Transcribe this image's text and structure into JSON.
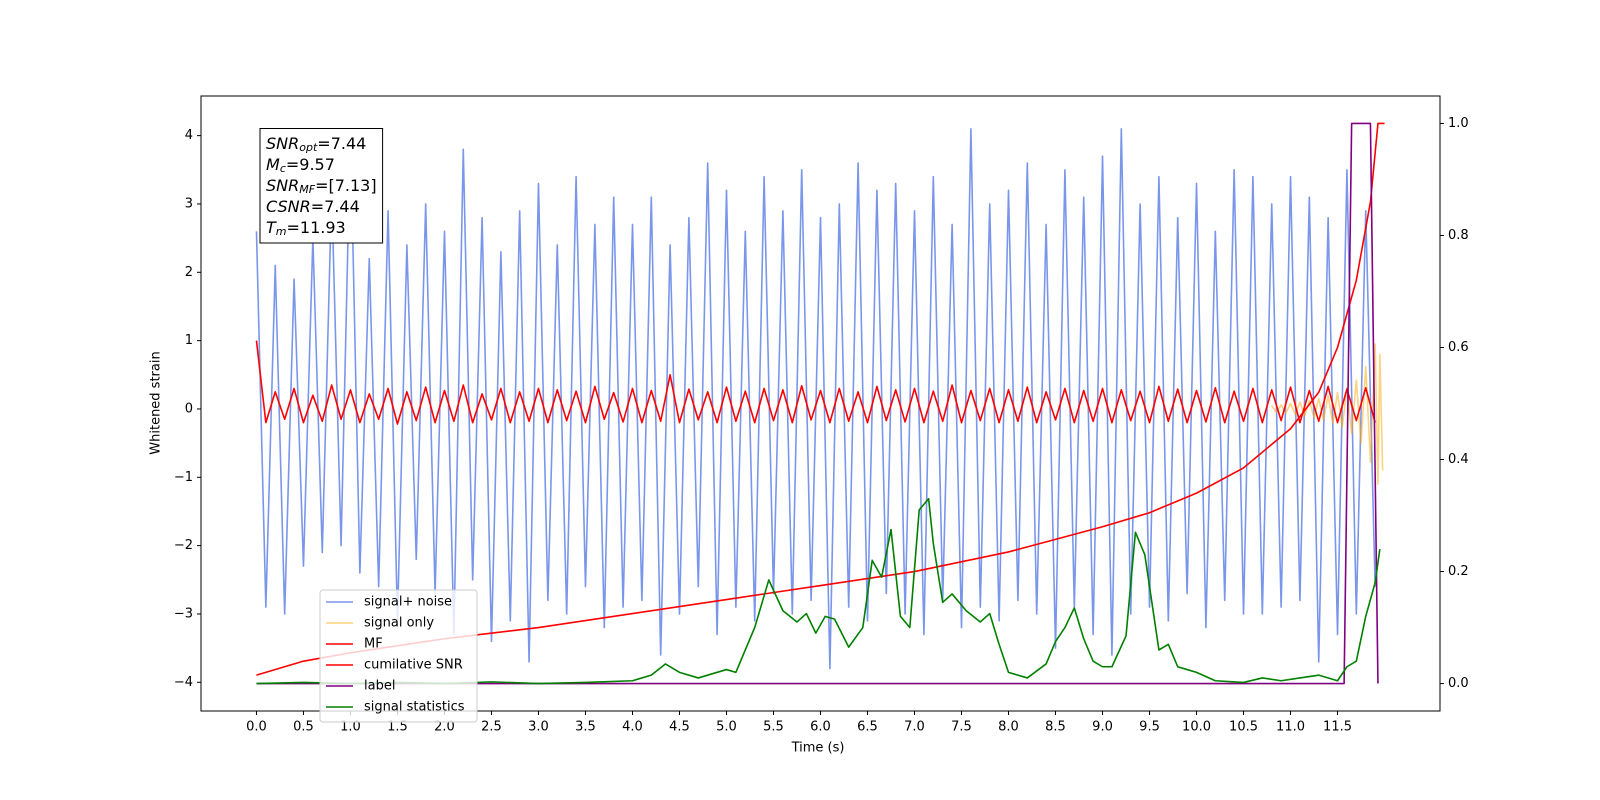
{
  "chart_data": {
    "type": "line",
    "xlabel": "Time (s)",
    "ylabel": "Whitened strain",
    "xlim": [
      -0.59,
      12.59
    ],
    "ylim": [
      -4.42,
      4.58
    ],
    "y2lim": [
      -0.049,
      1.049
    ],
    "xticks": [
      {
        "value": 0,
        "label": "0.0"
      },
      {
        "value": 0.5,
        "label": "0.5"
      },
      {
        "value": 1,
        "label": "1.0"
      },
      {
        "value": 1.5,
        "label": "1.5"
      },
      {
        "value": 2,
        "label": "2.0"
      },
      {
        "value": 2.5,
        "label": "2.5"
      },
      {
        "value": 3,
        "label": "3.0"
      },
      {
        "value": 3.5,
        "label": "3.5"
      },
      {
        "value": 4,
        "label": "4.0"
      },
      {
        "value": 4.5,
        "label": "4.5"
      },
      {
        "value": 5,
        "label": "5.0"
      },
      {
        "value": 5.5,
        "label": "5.5"
      },
      {
        "value": 6,
        "label": "6.0"
      },
      {
        "value": 6.5,
        "label": "6.5"
      },
      {
        "value": 7,
        "label": "7.0"
      },
      {
        "value": 7.5,
        "label": "7.5"
      },
      {
        "value": 8,
        "label": "8.0"
      },
      {
        "value": 8.5,
        "label": "8.5"
      },
      {
        "value": 9,
        "label": "9.0"
      },
      {
        "value": 9.5,
        "label": "9.5"
      },
      {
        "value": 10,
        "label": "10.0"
      },
      {
        "value": 10.5,
        "label": "10.5"
      },
      {
        "value": 11,
        "label": "11.0"
      },
      {
        "value": 11.5,
        "label": "11.5"
      }
    ],
    "yticks": [
      {
        "value": -4,
        "label": "−4"
      },
      {
        "value": -3,
        "label": "−3"
      },
      {
        "value": -2,
        "label": "−2"
      },
      {
        "value": -1,
        "label": "−1"
      },
      0,
      1,
      2,
      3,
      4
    ],
    "y2ticks": [
      {
        "value": 0,
        "label": "0.0"
      },
      {
        "value": 0.2,
        "label": "0.2"
      },
      {
        "value": 0.4,
        "label": "0.4"
      },
      {
        "value": 0.6,
        "label": "0.6"
      },
      {
        "value": 0.8,
        "label": "0.8"
      },
      {
        "value": 1,
        "label": "1.0"
      }
    ],
    "legend": "lower left",
    "annotation": [
      {
        "main": "SNR",
        "sub": "opt",
        "rest": "=7.44"
      },
      {
        "main": "M",
        "sub": "c",
        "rest": "=9.57"
      },
      {
        "main": "SNR",
        "sub": "MF",
        "rest": "=[7.13]"
      },
      {
        "main": "CSNR",
        "rest": "=7.44"
      },
      {
        "main": "T",
        "sub": "m",
        "rest": "=11.93"
      }
    ],
    "x": [
      0,
      0.1,
      0.2,
      0.3,
      0.4,
      0.5,
      0.6,
      0.7,
      0.8,
      0.9,
      1,
      1.1,
      1.2,
      1.3,
      1.4,
      1.5,
      1.6,
      1.7,
      1.8,
      1.9,
      2,
      2.1,
      2.2,
      2.3,
      2.4,
      2.5,
      2.6,
      2.7,
      2.8,
      2.9,
      3,
      3.1,
      3.2,
      3.3,
      3.4,
      3.5,
      3.6,
      3.7,
      3.8,
      3.9,
      4,
      4.1,
      4.2,
      4.3,
      4.4,
      4.5,
      4.6,
      4.7,
      4.8,
      4.9,
      5,
      5.1,
      5.2,
      5.3,
      5.4,
      5.5,
      5.6,
      5.7,
      5.8,
      5.9,
      6,
      6.1,
      6.2,
      6.3,
      6.4,
      6.5,
      6.6,
      6.7,
      6.8,
      6.9,
      7,
      7.1,
      7.2,
      7.3,
      7.4,
      7.5,
      7.6,
      7.7,
      7.8,
      7.9,
      8,
      8.1,
      8.2,
      8.3,
      8.4,
      8.5,
      8.6,
      8.7,
      8.8,
      8.9,
      9,
      9.1,
      9.2,
      9.3,
      9.4,
      9.5,
      9.6,
      9.7,
      9.8,
      9.9,
      10,
      10.1,
      10.2,
      10.3,
      10.4,
      10.5,
      10.6,
      10.7,
      10.8,
      10.9,
      11,
      11.1,
      11.2,
      11.3,
      11.4,
      11.5,
      11.6,
      11.7,
      11.8,
      11.9
    ],
    "series": [
      {
        "name": "signal+ noise",
        "color": "royalblue",
        "alpha": 0.7,
        "axis": "y",
        "values": [
          2.6,
          -2.9,
          2.1,
          -3.0,
          1.9,
          -2.3,
          2.5,
          -2.1,
          3.2,
          -2.0,
          4.1,
          -2.4,
          2.2,
          -2.6,
          2.9,
          -3.1,
          2.4,
          -2.2,
          3.0,
          -2.7,
          2.6,
          -3.3,
          3.8,
          -2.5,
          2.8,
          -3.4,
          2.3,
          -3.1,
          2.9,
          -3.7,
          3.3,
          -2.8,
          2.4,
          -3.0,
          3.4,
          -2.6,
          2.7,
          -3.2,
          3.1,
          -2.9,
          2.7,
          -2.8,
          3.1,
          -3.6,
          2.4,
          -3.0,
          2.8,
          -2.6,
          3.6,
          -3.3,
          3.2,
          -2.9,
          2.6,
          -3.1,
          3.4,
          -2.7,
          2.9,
          -3.0,
          3.5,
          -2.8,
          2.8,
          -3.8,
          3.0,
          -2.9,
          3.6,
          -3.1,
          3.2,
          -2.7,
          3.3,
          -3.0,
          2.9,
          -3.3,
          3.4,
          -2.8,
          2.7,
          -3.2,
          4.1,
          -2.9,
          3.0,
          -3.1,
          3.2,
          -2.8,
          3.6,
          -3.0,
          2.7,
          -3.5,
          3.5,
          -2.9,
          3.1,
          -3.3,
          3.7,
          -3.6,
          4.1,
          -3.0,
          3.0,
          -2.9,
          3.4,
          -3.1,
          2.8,
          -2.7,
          3.3,
          -3.2,
          2.6,
          -2.8,
          3.5,
          -3.0,
          3.4,
          -3.0,
          3.0,
          -2.9,
          3.4,
          -2.8,
          3.1,
          -3.7,
          2.8,
          -3.3,
          3.5,
          -3.0,
          2.9,
          -2.6
        ]
      },
      {
        "name": "signal only",
        "color": "orange",
        "alpha": 0.5,
        "axis": "y",
        "x": [
          10.8,
          10.85,
          10.9,
          10.95,
          11.0,
          11.05,
          11.1,
          11.15,
          11.2,
          11.25,
          11.3,
          11.35,
          11.4,
          11.45,
          11.5,
          11.55,
          11.6,
          11.65,
          11.7,
          11.75,
          11.8,
          11.85,
          11.9,
          11.93,
          11.95,
          11.98
        ],
        "values": [
          0.05,
          -0.05,
          0.06,
          -0.06,
          0.08,
          -0.08,
          0.1,
          -0.1,
          0.12,
          -0.13,
          0.15,
          -0.16,
          0.19,
          -0.21,
          0.24,
          -0.27,
          0.31,
          -0.36,
          0.42,
          -0.5,
          0.62,
          -0.78,
          0.95,
          -1.1,
          0.8,
          -0.9
        ]
      },
      {
        "name": "MF",
        "color": "red",
        "alpha": 1,
        "axis": "y",
        "values": [
          1.0,
          -0.2,
          0.25,
          -0.15,
          0.3,
          -0.2,
          0.2,
          -0.18,
          0.35,
          -0.15,
          0.28,
          -0.2,
          0.22,
          -0.15,
          0.3,
          -0.22,
          0.25,
          -0.17,
          0.32,
          -0.2,
          0.27,
          -0.18,
          0.35,
          -0.2,
          0.22,
          -0.16,
          0.3,
          -0.2,
          0.25,
          -0.18,
          0.3,
          -0.2,
          0.28,
          -0.17,
          0.26,
          -0.2,
          0.33,
          -0.15,
          0.24,
          -0.19,
          0.3,
          -0.2,
          0.27,
          -0.18,
          0.5,
          -0.2,
          0.29,
          -0.16,
          0.25,
          -0.2,
          0.32,
          -0.18,
          0.26,
          -0.2,
          0.3,
          -0.17,
          0.28,
          -0.2,
          0.34,
          -0.16,
          0.27,
          -0.2,
          0.3,
          -0.18,
          0.25,
          -0.2,
          0.33,
          -0.17,
          0.28,
          -0.19,
          0.3,
          -0.2,
          0.26,
          -0.18,
          0.35,
          -0.2,
          0.27,
          -0.17,
          0.3,
          -0.2,
          0.28,
          -0.18,
          0.32,
          -0.2,
          0.25,
          -0.16,
          0.3,
          -0.2,
          0.27,
          -0.18,
          0.3,
          -0.2,
          0.28,
          -0.17,
          0.26,
          -0.2,
          0.33,
          -0.18,
          0.29,
          -0.2,
          0.27,
          -0.19,
          0.31,
          -0.2,
          0.26,
          -0.18,
          0.3,
          -0.2,
          0.28,
          -0.17,
          0.32,
          -0.2,
          0.27,
          -0.18,
          0.33,
          -0.2,
          0.29,
          -0.17,
          0.31,
          -0.2
        ]
      },
      {
        "name": "cumilative SNR",
        "color": "red",
        "alpha": 1,
        "axis": "y2",
        "x": [
          0,
          0.5,
          1,
          2,
          3,
          4,
          5,
          6,
          7,
          8,
          9,
          9.5,
          10,
          10.5,
          11,
          11.3,
          11.5,
          11.7,
          11.85,
          11.93,
          12.0
        ],
        "values": [
          0.015,
          0.04,
          0.055,
          0.08,
          0.1,
          0.125,
          0.15,
          0.175,
          0.2,
          0.235,
          0.28,
          0.305,
          0.34,
          0.385,
          0.455,
          0.52,
          0.6,
          0.72,
          0.86,
          1.0,
          1.0
        ]
      },
      {
        "name": "label",
        "color": "purple",
        "alpha": 1,
        "axis": "y2",
        "x": [
          0,
          11.57,
          11.65,
          11.85,
          11.93
        ],
        "values": [
          0,
          0,
          1,
          1,
          0
        ]
      },
      {
        "name": "signal statistics",
        "color": "green",
        "alpha": 1,
        "axis": "y2",
        "x": [
          0,
          0.5,
          1,
          1.5,
          2,
          2.5,
          3,
          3.5,
          4,
          4.2,
          4.35,
          4.5,
          4.7,
          5.0,
          5.1,
          5.3,
          5.45,
          5.6,
          5.75,
          5.85,
          5.95,
          6.05,
          6.15,
          6.3,
          6.45,
          6.55,
          6.65,
          6.75,
          6.85,
          6.95,
          7.05,
          7.15,
          7.2,
          7.3,
          7.4,
          7.55,
          7.7,
          7.8,
          7.9,
          8.0,
          8.2,
          8.4,
          8.5,
          8.6,
          8.7,
          8.8,
          8.9,
          9.0,
          9.1,
          9.25,
          9.35,
          9.45,
          9.6,
          9.7,
          9.8,
          9.9,
          10.0,
          10.2,
          10.5,
          10.7,
          10.9,
          11.1,
          11.3,
          11.5,
          11.6,
          11.7,
          11.8,
          11.9,
          11.95
        ],
        "values": [
          0.0,
          0.002,
          0.0,
          0.002,
          0.0,
          0.003,
          0.0,
          0.002,
          0.005,
          0.015,
          0.035,
          0.02,
          0.01,
          0.025,
          0.02,
          0.1,
          0.185,
          0.13,
          0.11,
          0.125,
          0.09,
          0.12,
          0.115,
          0.065,
          0.1,
          0.22,
          0.19,
          0.275,
          0.12,
          0.1,
          0.31,
          0.33,
          0.25,
          0.145,
          0.16,
          0.13,
          0.11,
          0.125,
          0.07,
          0.02,
          0.01,
          0.035,
          0.075,
          0.1,
          0.135,
          0.08,
          0.04,
          0.03,
          0.03,
          0.085,
          0.27,
          0.23,
          0.06,
          0.07,
          0.03,
          0.025,
          0.02,
          0.005,
          0.002,
          0.01,
          0.005,
          0.01,
          0.015,
          0.005,
          0.03,
          0.04,
          0.12,
          0.18,
          0.24
        ]
      }
    ]
  }
}
